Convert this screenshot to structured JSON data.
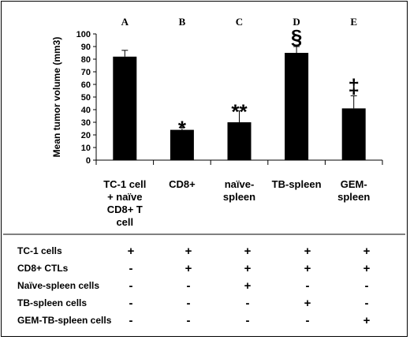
{
  "chart_data": {
    "type": "bar",
    "ylabel": "Mean tumor volume (mm3)",
    "ylim": [
      0,
      100
    ],
    "yticks": [
      0,
      10,
      20,
      30,
      40,
      50,
      60,
      70,
      80,
      90,
      100
    ],
    "grid": false,
    "categories": [
      {
        "letter": "A",
        "label_lines": [
          "TC-1 cell",
          "+ naïve",
          "CD8+ T",
          "cell"
        ],
        "value": 82,
        "error": 5,
        "mark": ""
      },
      {
        "letter": "B",
        "label_lines": [
          "CD8+"
        ],
        "value": 24,
        "error": 2,
        "mark": "*"
      },
      {
        "letter": "C",
        "label_lines": [
          "naïve-",
          "spleen"
        ],
        "value": 30,
        "error": 9,
        "mark": "**"
      },
      {
        "letter": "D",
        "label_lines": [
          "TB-spleen"
        ],
        "value": 85,
        "error": 5,
        "mark": "§"
      },
      {
        "letter": "E",
        "label_lines": [
          "GEM-",
          "spleen"
        ],
        "value": 41,
        "error": 10,
        "mark": "‡"
      }
    ],
    "treatment_table": [
      {
        "label": "TC-1 cells",
        "values": [
          "+",
          "+",
          "+",
          "+",
          "+"
        ]
      },
      {
        "label": "CD8+ CTLs",
        "values": [
          "-",
          "+",
          "+",
          "+",
          "+"
        ]
      },
      {
        "label": "Naïve-spleen cells",
        "values": [
          "-",
          "-",
          "+",
          "-",
          "-"
        ]
      },
      {
        "label": "TB-spleen cells",
        "values": [
          "-",
          "-",
          "-",
          "+",
          "-"
        ]
      },
      {
        "label": "GEM-TB-spleen cells",
        "values": [
          "-",
          "-",
          "-",
          "-",
          "+"
        ]
      }
    ],
    "colors": {
      "bar": "#000000",
      "axis": "#000000",
      "background": "#ffffff"
    }
  }
}
